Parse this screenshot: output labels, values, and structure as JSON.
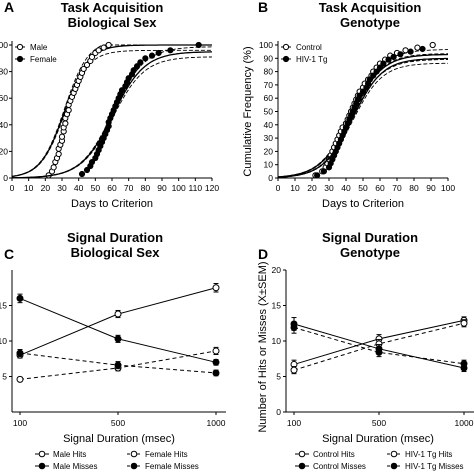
{
  "chart_data": [
    {
      "panel": "A",
      "type": "scatter",
      "title": [
        "Task Acquisition",
        "Biological Sex"
      ],
      "xlabel": "Days to Criterion",
      "ylabel": "",
      "xlim": [
        0,
        120
      ],
      "ylim": [
        0,
        100
      ],
      "xticks": [
        "0",
        "10",
        "20",
        "30",
        "40",
        "50",
        "60",
        "70",
        "80",
        "90",
        "100",
        "110",
        "120"
      ],
      "yticks": [
        "0",
        "20",
        "40",
        "60",
        "80",
        "100"
      ],
      "legend_position": "top-left",
      "series": [
        {
          "name": "Male",
          "marker": "open-circle",
          "x": [
            22,
            24,
            25,
            26,
            27,
            28,
            28,
            29,
            30,
            30,
            31,
            31,
            32,
            32,
            33,
            34,
            34,
            35,
            36,
            37,
            38,
            39,
            40,
            41,
            42,
            43,
            45,
            47,
            48,
            50,
            52,
            55,
            58
          ],
          "y": [
            2,
            5,
            8,
            12,
            15,
            18,
            22,
            25,
            28,
            31,
            35,
            38,
            41,
            45,
            48,
            51,
            55,
            58,
            61,
            64,
            67,
            70,
            73,
            76,
            79,
            82,
            85,
            88,
            91,
            94,
            96,
            98,
            100
          ],
          "fit_mid": 31.5,
          "fit_slope": 0.14,
          "fit_top": 100
        },
        {
          "name": "Female",
          "marker": "filled-circle",
          "x": [
            42,
            45,
            47,
            48,
            50,
            51,
            52,
            53,
            54,
            55,
            56,
            57,
            58,
            58,
            59,
            60,
            61,
            62,
            63,
            64,
            65,
            66,
            68,
            69,
            70,
            72,
            73,
            75,
            77,
            80,
            84,
            88,
            95,
            112
          ],
          "y": [
            3,
            6,
            9,
            12,
            15,
            18,
            21,
            24,
            27,
            30,
            33,
            36,
            39,
            42,
            45,
            48,
            51,
            54,
            57,
            60,
            63,
            66,
            69,
            72,
            75,
            78,
            81,
            84,
            87,
            90,
            92,
            94,
            96,
            100
          ],
          "fit_mid": 60.5,
          "fit_slope": 0.105,
          "fit_top": 95
        }
      ]
    },
    {
      "panel": "B",
      "type": "scatter",
      "title": [
        "Task Acquisition",
        "Genotype"
      ],
      "xlabel": "Days to Criterion",
      "ylabel": "Cumulative Frequency (%)",
      "xlim": [
        0,
        100
      ],
      "ylim": [
        0,
        100
      ],
      "xticks": [
        "0",
        "10",
        "20",
        "30",
        "40",
        "50",
        "60",
        "70",
        "80",
        "90",
        "100"
      ],
      "yticks": [
        "0",
        "10",
        "20",
        "30",
        "40",
        "50",
        "60",
        "70",
        "80",
        "90",
        "100"
      ],
      "legend_position": "top-left",
      "series": [
        {
          "name": "Control",
          "marker": "open-circle",
          "x": [
            22,
            26,
            28,
            29,
            30,
            31,
            32,
            33,
            34,
            35,
            36,
            37,
            38,
            40,
            41,
            42,
            43,
            44,
            45,
            46,
            47,
            48,
            50,
            51,
            53,
            55,
            56,
            58,
            60,
            63,
            66,
            70,
            75,
            82,
            91
          ],
          "y": [
            2,
            5,
            8,
            11,
            14,
            17,
            20,
            23,
            26,
            29,
            32,
            35,
            38,
            41,
            44,
            47,
            50,
            53,
            56,
            59,
            62,
            65,
            68,
            71,
            74,
            77,
            80,
            83,
            86,
            89,
            92,
            94,
            96,
            98,
            100
          ],
          "fit_mid": 43,
          "fit_slope": 0.11,
          "fit_top": 93
        },
        {
          "name": "HIV-1 Tg",
          "marker": "filled-circle",
          "x": [
            23,
            27,
            30,
            31,
            32,
            33,
            34,
            35,
            36,
            37,
            38,
            39,
            40,
            41,
            42,
            43,
            44,
            45,
            46,
            47,
            48,
            50,
            52,
            53,
            54,
            56,
            58,
            60,
            62,
            65,
            68,
            72,
            78,
            85
          ],
          "y": [
            2,
            5,
            8,
            11,
            14,
            17,
            20,
            23,
            26,
            29,
            32,
            35,
            38,
            41,
            44,
            47,
            50,
            53,
            56,
            59,
            62,
            65,
            68,
            71,
            74,
            77,
            80,
            83,
            86,
            89,
            91,
            93,
            95,
            97
          ],
          "fit_mid": 44,
          "fit_slope": 0.115,
          "fit_top": 90
        }
      ]
    },
    {
      "panel": "C",
      "type": "line",
      "title": [
        "Signal Duration",
        "Biological Sex"
      ],
      "xlabel": "Signal Duration (msec)",
      "ylabel": "",
      "x": [
        100,
        500,
        1000
      ],
      "xticks": [
        "100",
        "500",
        "1000"
      ],
      "ylim": [
        0,
        20
      ],
      "yticks": [
        "5",
        "10",
        "15"
      ],
      "legend_position": "bottom",
      "series": [
        {
          "name": "Male Hits",
          "marker": "open-circle",
          "line": "solid",
          "values": [
            8.0,
            13.8,
            17.5
          ],
          "sem": [
            0.4,
            0.5,
            0.6
          ]
        },
        {
          "name": "Female Hits",
          "marker": "open-circle",
          "line": "dashed",
          "values": [
            4.6,
            6.2,
            8.6
          ],
          "sem": [
            0.3,
            0.4,
            0.5
          ]
        },
        {
          "name": "Male Misses",
          "marker": "filled-circle",
          "line": "solid",
          "values": [
            16.0,
            10.3,
            7.0
          ],
          "sem": [
            0.6,
            0.5,
            0.4
          ]
        },
        {
          "name": "Female Misses",
          "marker": "filled-circle",
          "line": "dashed",
          "values": [
            8.3,
            6.6,
            5.5
          ],
          "sem": [
            0.5,
            0.5,
            0.4
          ]
        }
      ]
    },
    {
      "panel": "D",
      "type": "line",
      "title": [
        "Signal Duration",
        "Genotype"
      ],
      "xlabel": "Signal Duration (msec)",
      "ylabel": "Number of Hits or Misses (X±SEM)",
      "x": [
        100,
        500,
        1000
      ],
      "xticks": [
        "100",
        "500",
        "1000"
      ],
      "ylim": [
        0,
        20
      ],
      "yticks": [
        "0",
        "5",
        "10",
        "15",
        "20"
      ],
      "legend_position": "bottom",
      "series": [
        {
          "name": "Control Hits",
          "marker": "open-circle",
          "line": "solid",
          "values": [
            6.7,
            10.3,
            12.9
          ],
          "sem": [
            0.6,
            0.6,
            0.5
          ]
        },
        {
          "name": "HIV-1 Tg Hits",
          "marker": "open-circle",
          "line": "dashed",
          "values": [
            5.9,
            9.6,
            12.5
          ],
          "sem": [
            0.5,
            0.6,
            0.5
          ]
        },
        {
          "name": "Control Misses",
          "marker": "filled-circle",
          "line": "solid",
          "values": [
            12.4,
            8.9,
            6.2
          ],
          "sem": [
            0.9,
            0.6,
            0.5
          ]
        },
        {
          "name": "HIV-1 Tg Misses",
          "marker": "filled-circle",
          "line": "dashed",
          "values": [
            11.9,
            8.4,
            6.8
          ],
          "sem": [
            0.8,
            0.6,
            0.5
          ]
        }
      ]
    }
  ]
}
